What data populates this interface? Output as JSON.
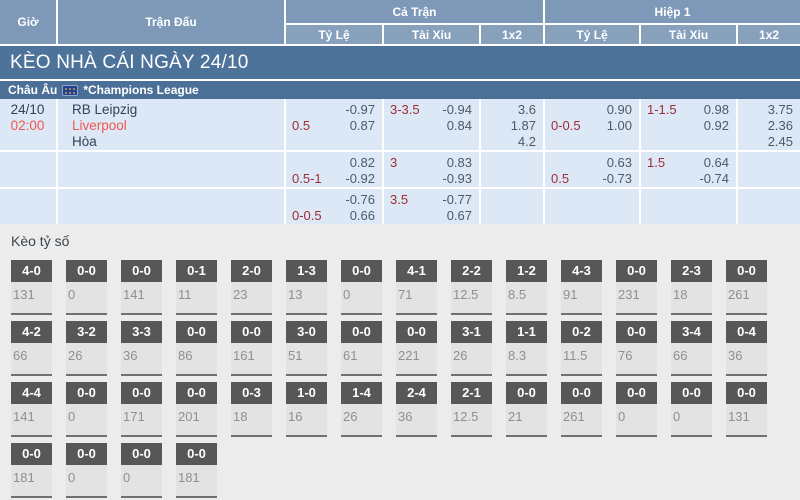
{
  "colors": {
    "header_bg": "#7e99b8",
    "title_bar_bg": "#4e739b",
    "league_bar_bg": "#4b6f97",
    "odds_row_bg": "#dce8f6",
    "handicap_red": "#9e2c35",
    "accent_red": "#f3574d",
    "navy_text": "#32415a",
    "score_box_bg": "#575757",
    "section_bg": "#ececec"
  },
  "table_header": {
    "time": "Giờ",
    "match": "Trận Đấu",
    "full_match": "Cả Trận",
    "first_half": "Hiệp 1",
    "handicap": "Tỷ Lệ",
    "over_under": "Tài Xỉu",
    "one_x_two": "1x2"
  },
  "title_bar": "KÈO NHÀ CÁI NGÀY 24/10",
  "league": {
    "region": "Châu Âu",
    "flag_icon": "eu-flag",
    "name": "*Champions League"
  },
  "match": {
    "date": "24/10",
    "time": "02:00",
    "home": "RB Leipzig",
    "away": "Liverpool",
    "draw": "Hòa"
  },
  "odds_rows": [
    {
      "full_hdp": {
        "v1": "-0.97",
        "hdp": "0.5",
        "v2": "0.87"
      },
      "full_ou": {
        "line": "3-3.5",
        "v1": "-0.94",
        "v2": "0.84"
      },
      "full_1x2": [
        "3.6",
        "1.87",
        "4.2"
      ],
      "half_hdp": {
        "v1": "0.90",
        "hdp": "0-0.5",
        "v2": "1.00"
      },
      "half_ou": {
        "line": "1-1.5",
        "v1": "0.98",
        "v2": "0.92"
      },
      "half_1x2": [
        "3.75",
        "2.36",
        "2.45"
      ]
    },
    {
      "full_hdp": {
        "v1": "0.82",
        "hdp": "0.5-1",
        "v2": "-0.92"
      },
      "full_ou": {
        "line": "3",
        "v1": "0.83",
        "v2": "-0.93"
      },
      "full_1x2": [],
      "half_hdp": {
        "v1": "0.63",
        "hdp": "0.5",
        "v2": "-0.73"
      },
      "half_ou": {
        "line": "1.5",
        "v1": "0.64",
        "v2": "-0.74"
      },
      "half_1x2": []
    },
    {
      "full_hdp": {
        "v1": "-0.76",
        "hdp": "0-0.5",
        "v2": "0.66"
      },
      "full_ou": {
        "line": "3.5",
        "v1": "-0.77",
        "v2": "0.67"
      },
      "full_1x2": [],
      "half_hdp": {},
      "half_ou": {},
      "half_1x2": []
    }
  ],
  "score_section": {
    "title": "Kèo tỷ số",
    "rows": [
      [
        {
          "s": "4-0",
          "o": "131"
        },
        {
          "s": "0-0",
          "o": "0"
        },
        {
          "s": "0-0",
          "o": "141"
        },
        {
          "s": "0-1",
          "o": "11"
        },
        {
          "s": "2-0",
          "o": "23"
        },
        {
          "s": "1-3",
          "o": "13"
        },
        {
          "s": "0-0",
          "o": "0"
        },
        {
          "s": "4-1",
          "o": "71"
        },
        {
          "s": "2-2",
          "o": "12.5"
        },
        {
          "s": "1-2",
          "o": "8.5"
        },
        {
          "s": "4-3",
          "o": "91"
        },
        {
          "s": "0-0",
          "o": "231"
        },
        {
          "s": "2-3",
          "o": "18"
        },
        {
          "s": "0-0",
          "o": "261"
        }
      ],
      [
        {
          "s": "4-2",
          "o": "66"
        },
        {
          "s": "3-2",
          "o": "26"
        },
        {
          "s": "3-3",
          "o": "36"
        },
        {
          "s": "0-0",
          "o": "86"
        },
        {
          "s": "0-0",
          "o": "161"
        },
        {
          "s": "3-0",
          "o": "51"
        },
        {
          "s": "0-0",
          "o": "61"
        },
        {
          "s": "0-0",
          "o": "221"
        },
        {
          "s": "3-1",
          "o": "26"
        },
        {
          "s": "1-1",
          "o": "8.3"
        },
        {
          "s": "0-2",
          "o": "11.5"
        },
        {
          "s": "0-0",
          "o": "76"
        },
        {
          "s": "3-4",
          "o": "66"
        },
        {
          "s": "0-4",
          "o": "36"
        }
      ],
      [
        {
          "s": "4-4",
          "o": "141"
        },
        {
          "s": "0-0",
          "o": "0"
        },
        {
          "s": "0-0",
          "o": "171"
        },
        {
          "s": "0-0",
          "o": "201"
        },
        {
          "s": "0-3",
          "o": "18"
        },
        {
          "s": "1-0",
          "o": "16"
        },
        {
          "s": "1-4",
          "o": "26"
        },
        {
          "s": "2-4",
          "o": "36"
        },
        {
          "s": "2-1",
          "o": "12.5"
        },
        {
          "s": "0-0",
          "o": "21"
        },
        {
          "s": "0-0",
          "o": "261"
        },
        {
          "s": "0-0",
          "o": "0"
        },
        {
          "s": "0-0",
          "o": "0"
        },
        {
          "s": "0-0",
          "o": "131"
        }
      ],
      [
        {
          "s": "0-0",
          "o": "181"
        },
        {
          "s": "0-0",
          "o": "0"
        },
        {
          "s": "0-0",
          "o": "0"
        },
        {
          "s": "0-0",
          "o": "181"
        }
      ]
    ]
  }
}
